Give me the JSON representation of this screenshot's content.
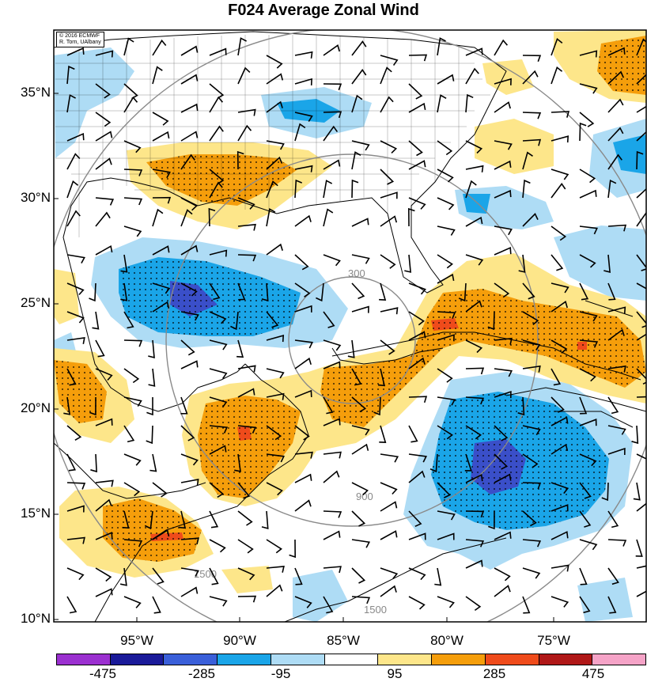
{
  "title": "F024 Average Zonal Wind",
  "credit": {
    "line1": "© 2016 ECMWF",
    "line2": "R. Torn, UAlbany"
  },
  "latitude_labels": [
    "35°N",
    "30°N",
    "25°N",
    "20°N",
    "15°N",
    "10°N"
  ],
  "longitude_labels": [
    "95°W",
    "90°W",
    "85°W",
    "80°W",
    "75°W"
  ],
  "range_ring_labels": [
    "300",
    "900",
    "1500"
  ],
  "colorbar": {
    "labels": [
      "-475",
      "-285",
      "-95",
      "95",
      "285",
      "475"
    ],
    "colors": [
      "#9b30d0",
      "#1a1a99",
      "#3a5fd9",
      "#1aa5e8",
      "#aedcf5",
      "#ffffff",
      "#fde68a",
      "#f59e0b",
      "#ef4b1b",
      "#b01818",
      "#f5a3c7"
    ]
  },
  "field_colors": {
    "light_blue": "#aedcf5",
    "mid_blue": "#1aa5e8",
    "dark_blue": "#3a4fc9",
    "light_orange": "#fde68a",
    "orange": "#f59e0b",
    "red": "#ef4b1b"
  }
}
